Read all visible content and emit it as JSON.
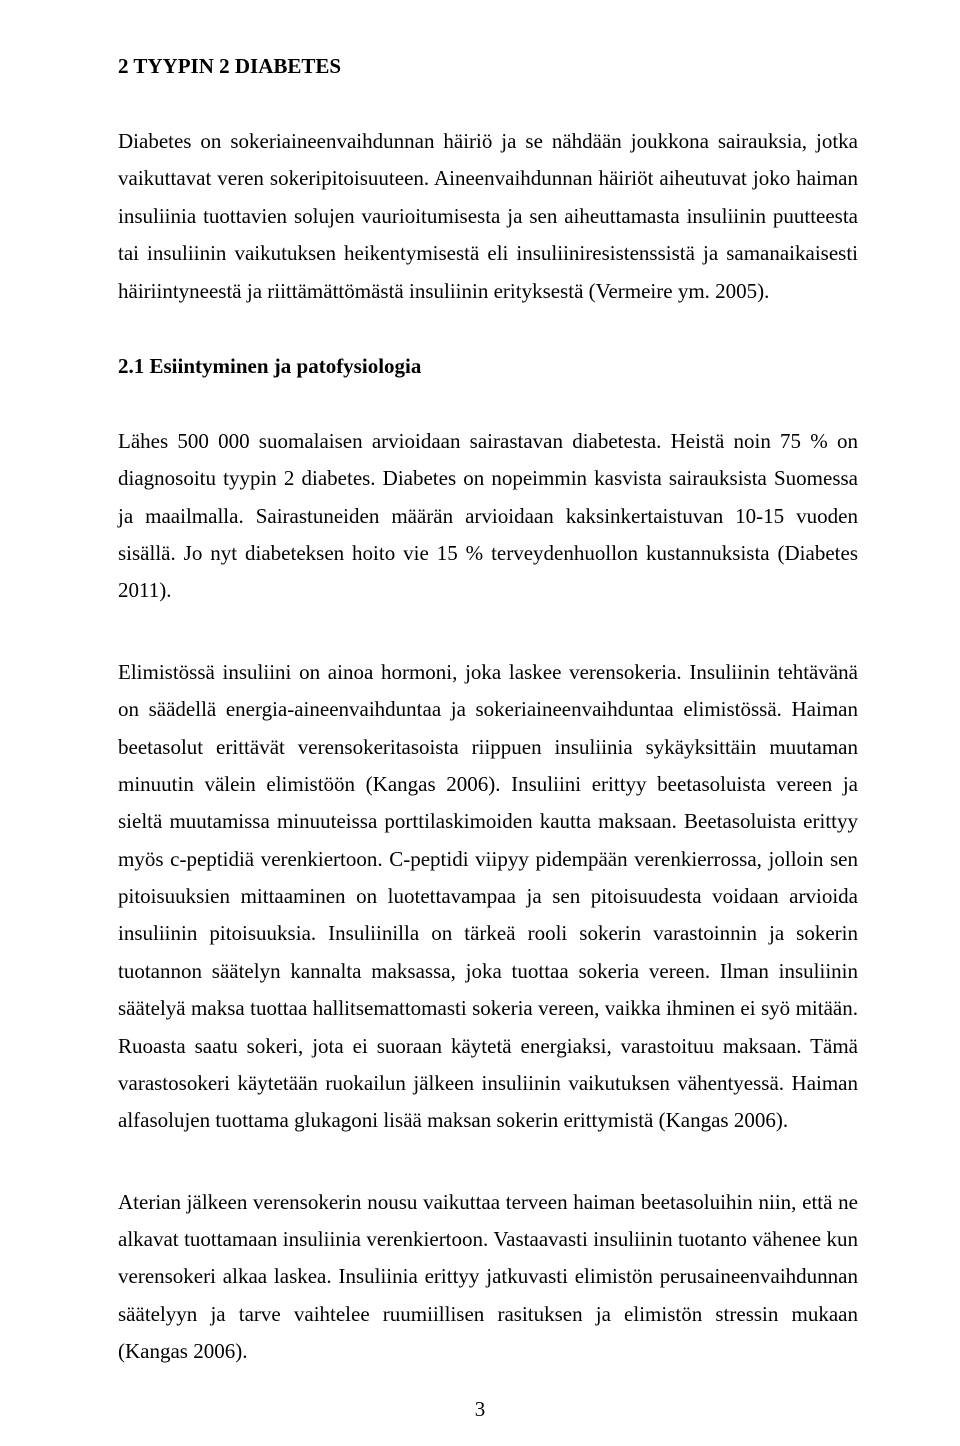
{
  "heading1": "2 TYYPIN 2 DIABETES",
  "para1": "Diabetes on sokeriaineenvaihdunnan häiriö ja se nähdään joukkona sairauksia, jotka vaikuttavat veren sokeripitoisuuteen. Aineenvaihdunnan häiriöt aiheutuvat joko haiman insuliinia tuottavien solujen vaurioitumisesta ja sen aiheuttamasta insuliinin puutteesta tai insuliinin vaikutuksen heikentymisestä eli insuliiniresistenssistä ja samanaikaisesti häiriintyneestä ja riittämättömästä insuliinin erityksestä (Vermeire ym. 2005).",
  "heading2": "2.1 Esiintyminen ja patofysiologia",
  "para2": "Lähes 500 000 suomalaisen arvioidaan sairastavan diabetesta. Heistä noin 75 % on diagnosoitu tyypin 2 diabetes. Diabetes on nopeimmin kasvista sairauksista Suomessa ja maailmalla. Sairastuneiden määrän arvioidaan kaksinkertaistuvan 10-15 vuoden sisällä. Jo nyt diabeteksen hoito vie 15 % terveydenhuollon kustannuksista (Diabetes 2011).",
  "para3": "Elimistössä insuliini on ainoa hormoni, joka laskee verensokeria. Insuliinin tehtävänä on säädellä energia-aineenvaihduntaa ja sokeriaineenvaihduntaa elimistössä. Haiman beetasolut erittävät verensokeritasoista riippuen insuliinia sykäyksittäin muutaman minuutin välein elimistöön (Kangas 2006). Insuliini erittyy beetasoluista vereen ja sieltä muutamissa minuuteissa porttilaskimoiden kautta maksaan. Beetasoluista erittyy myös c-peptidiä verenkiertoon. C-peptidi viipyy pidempään verenkierrossa, jolloin sen pitoisuuksien mittaaminen on luotettavampaa ja sen pitoisuudesta voidaan arvioida insuliinin pitoisuuksia. Insuliinilla on tärkeä rooli sokerin varastoinnin ja sokerin tuotannon säätelyn kannalta maksassa, joka tuottaa sokeria vereen. Ilman insuliinin säätelyä maksa tuottaa hallitsemattomasti sokeria vereen, vaikka ihminen ei syö mitään. Ruoasta saatu sokeri, jota ei suoraan käytetä energiaksi, varastoituu maksaan. Tämä varastosokeri käytetään ruokailun jälkeen insuliinin vaikutuksen vähentyessä. Haiman alfasolujen tuottama glukagoni lisää maksan sokerin erittymistä (Kangas 2006).",
  "para4": "Aterian jälkeen verensokerin nousu vaikuttaa terveen haiman beetasoluihin niin, että ne alkavat tuottamaan insuliinia verenkiertoon. Vastaavasti insuliinin tuotanto vähenee kun verensokeri alkaa laskea. Insuliinia erittyy jatkuvasti elimistön perusaineenvaihdunnan säätelyyn ja tarve vaihtelee ruumiillisen rasituksen ja elimistön stressin mukaan (Kangas 2006).",
  "pageNumber": "3"
}
